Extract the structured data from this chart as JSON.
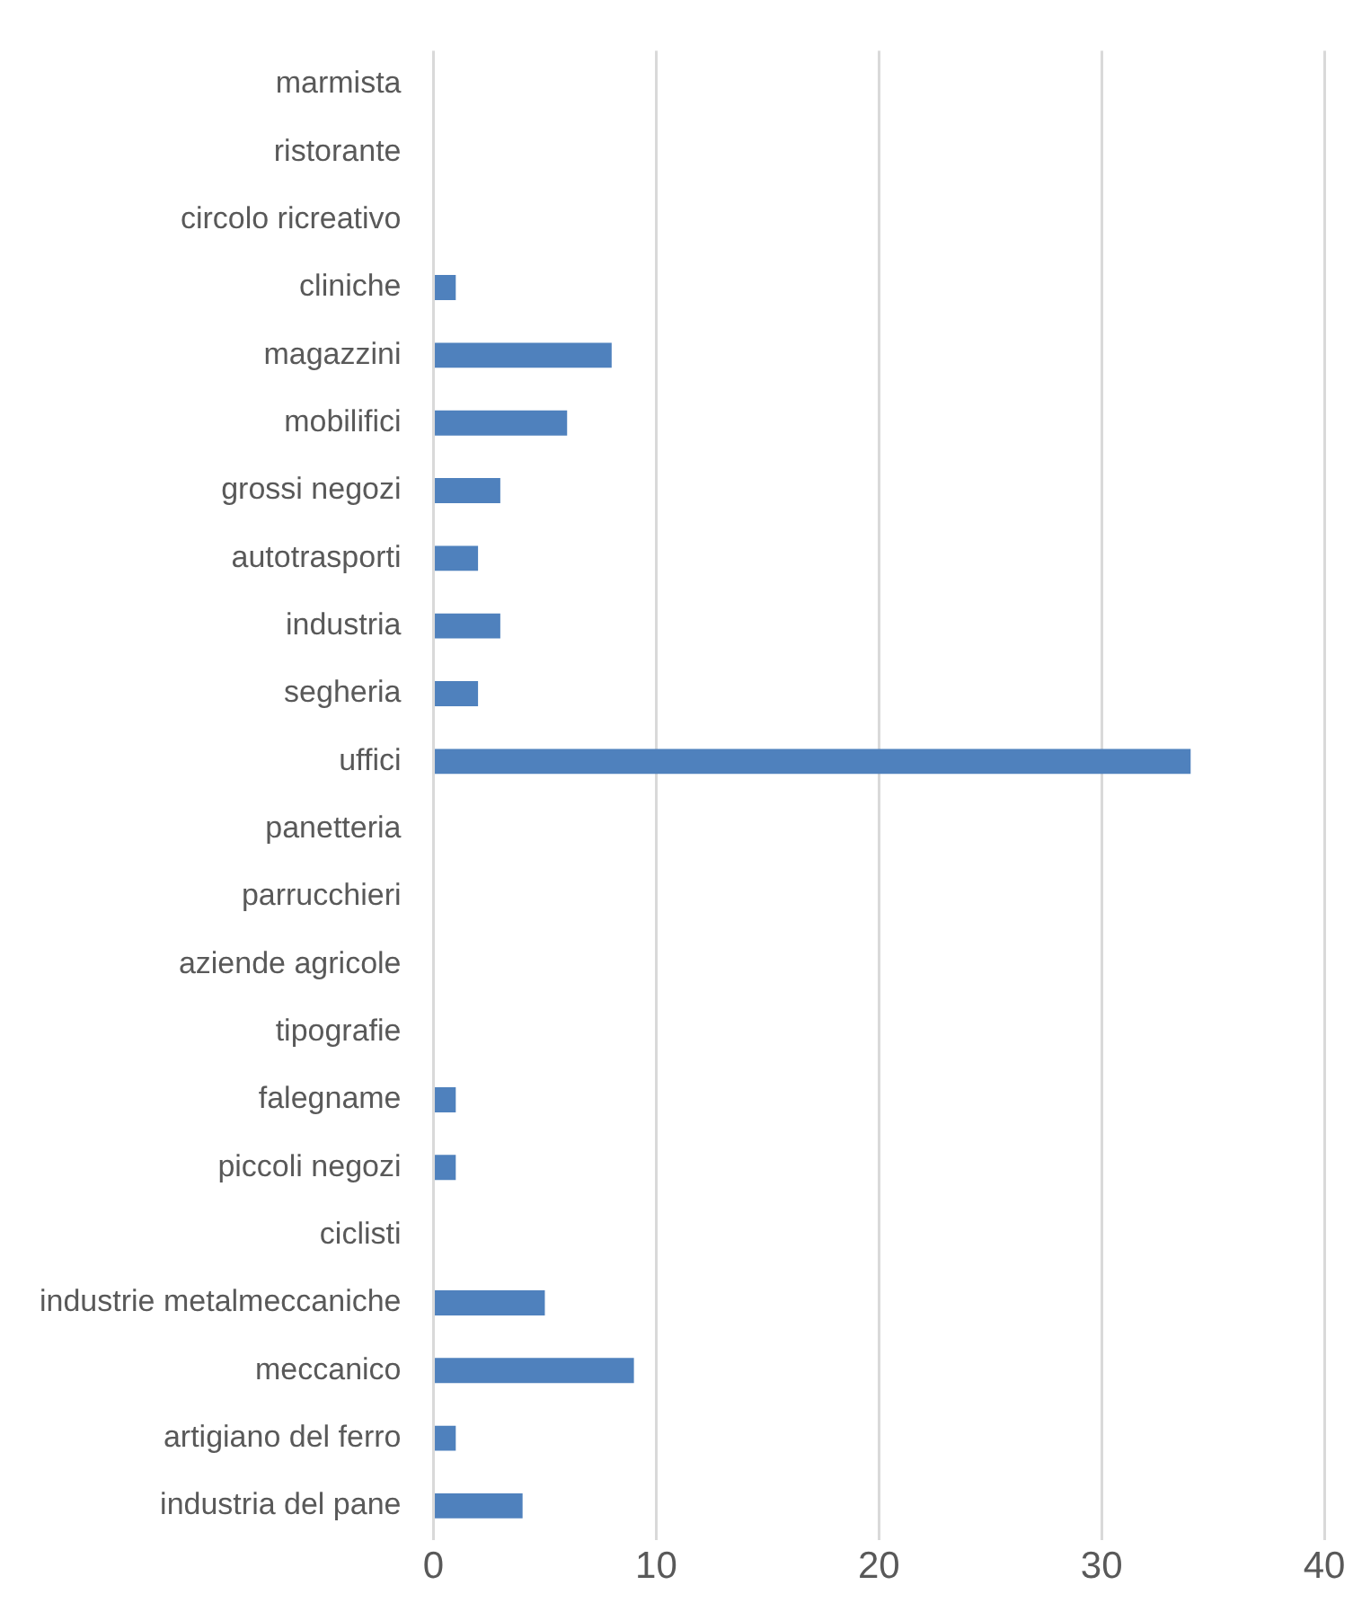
{
  "chart_data": {
    "type": "bar",
    "orientation": "horizontal",
    "categories": [
      "marmista",
      "ristorante",
      "circolo ricreativo",
      "cliniche",
      "magazzini",
      "mobilifici",
      "grossi negozi",
      "autotrasporti",
      "industria",
      "segheria",
      "uffici",
      "panetteria",
      "parrucchieri",
      "aziende agricole",
      "tipografie",
      "falegname",
      "piccoli negozi",
      "ciclisti",
      "industrie metalmeccaniche",
      "meccanico",
      "artigiano del ferro",
      "industria del pane"
    ],
    "values": [
      0,
      0,
      0,
      1,
      8,
      6,
      3,
      2,
      3,
      2,
      34,
      0,
      0,
      0,
      0,
      1,
      1,
      0,
      5,
      9,
      1,
      4
    ],
    "color": "#4f81bd",
    "xlim": [
      0,
      40
    ],
    "xticks": [
      0,
      10,
      20,
      30,
      40
    ],
    "grid": "x",
    "legend": false
  }
}
